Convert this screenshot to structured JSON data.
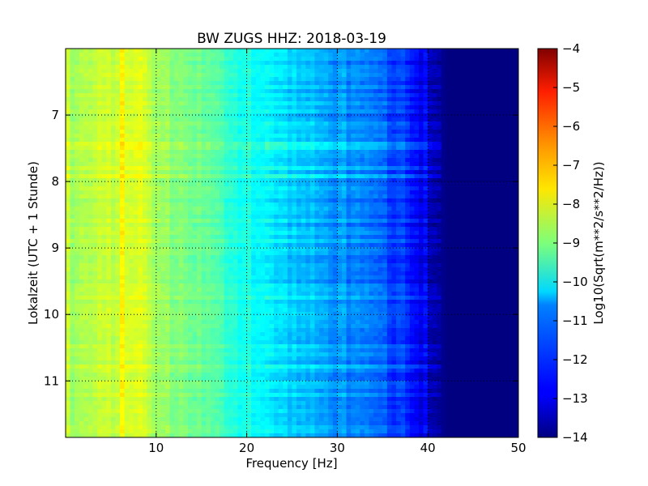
{
  "chart_data": {
    "type": "heatmap",
    "title": "BW ZUGS HHZ: 2018-03-19",
    "xlabel": "Frequency [Hz]",
    "ylabel": "Lokalzeit (UTC + 1 Stunde)",
    "xlim": [
      0,
      50
    ],
    "ylim": [
      6,
      11.85
    ],
    "y_inverted": true,
    "x_ticks": [
      10,
      20,
      30,
      40,
      50
    ],
    "y_ticks": [
      7,
      8,
      9,
      10,
      11
    ],
    "grid": true,
    "colormap": "jet",
    "colorbar": {
      "label": "Log10(Sqrt(m**2/s**2/Hz))",
      "range": [
        -14,
        -4
      ],
      "ticks": [
        -4,
        -5,
        -6,
        -7,
        -8,
        -9,
        -10,
        -11,
        -12,
        -13,
        -14
      ]
    },
    "frequency_profile": {
      "frequency_hz": [
        0,
        5,
        8,
        10,
        15,
        20,
        25,
        30,
        35,
        38,
        40,
        41,
        42,
        50
      ],
      "log10_amplitude": [
        -8.7,
        -8.3,
        -8.0,
        -8.7,
        -9.2,
        -10.1,
        -10.7,
        -11.3,
        -11.8,
        -12.6,
        -13.2,
        -13.6,
        -14.0,
        -14.0
      ]
    }
  }
}
